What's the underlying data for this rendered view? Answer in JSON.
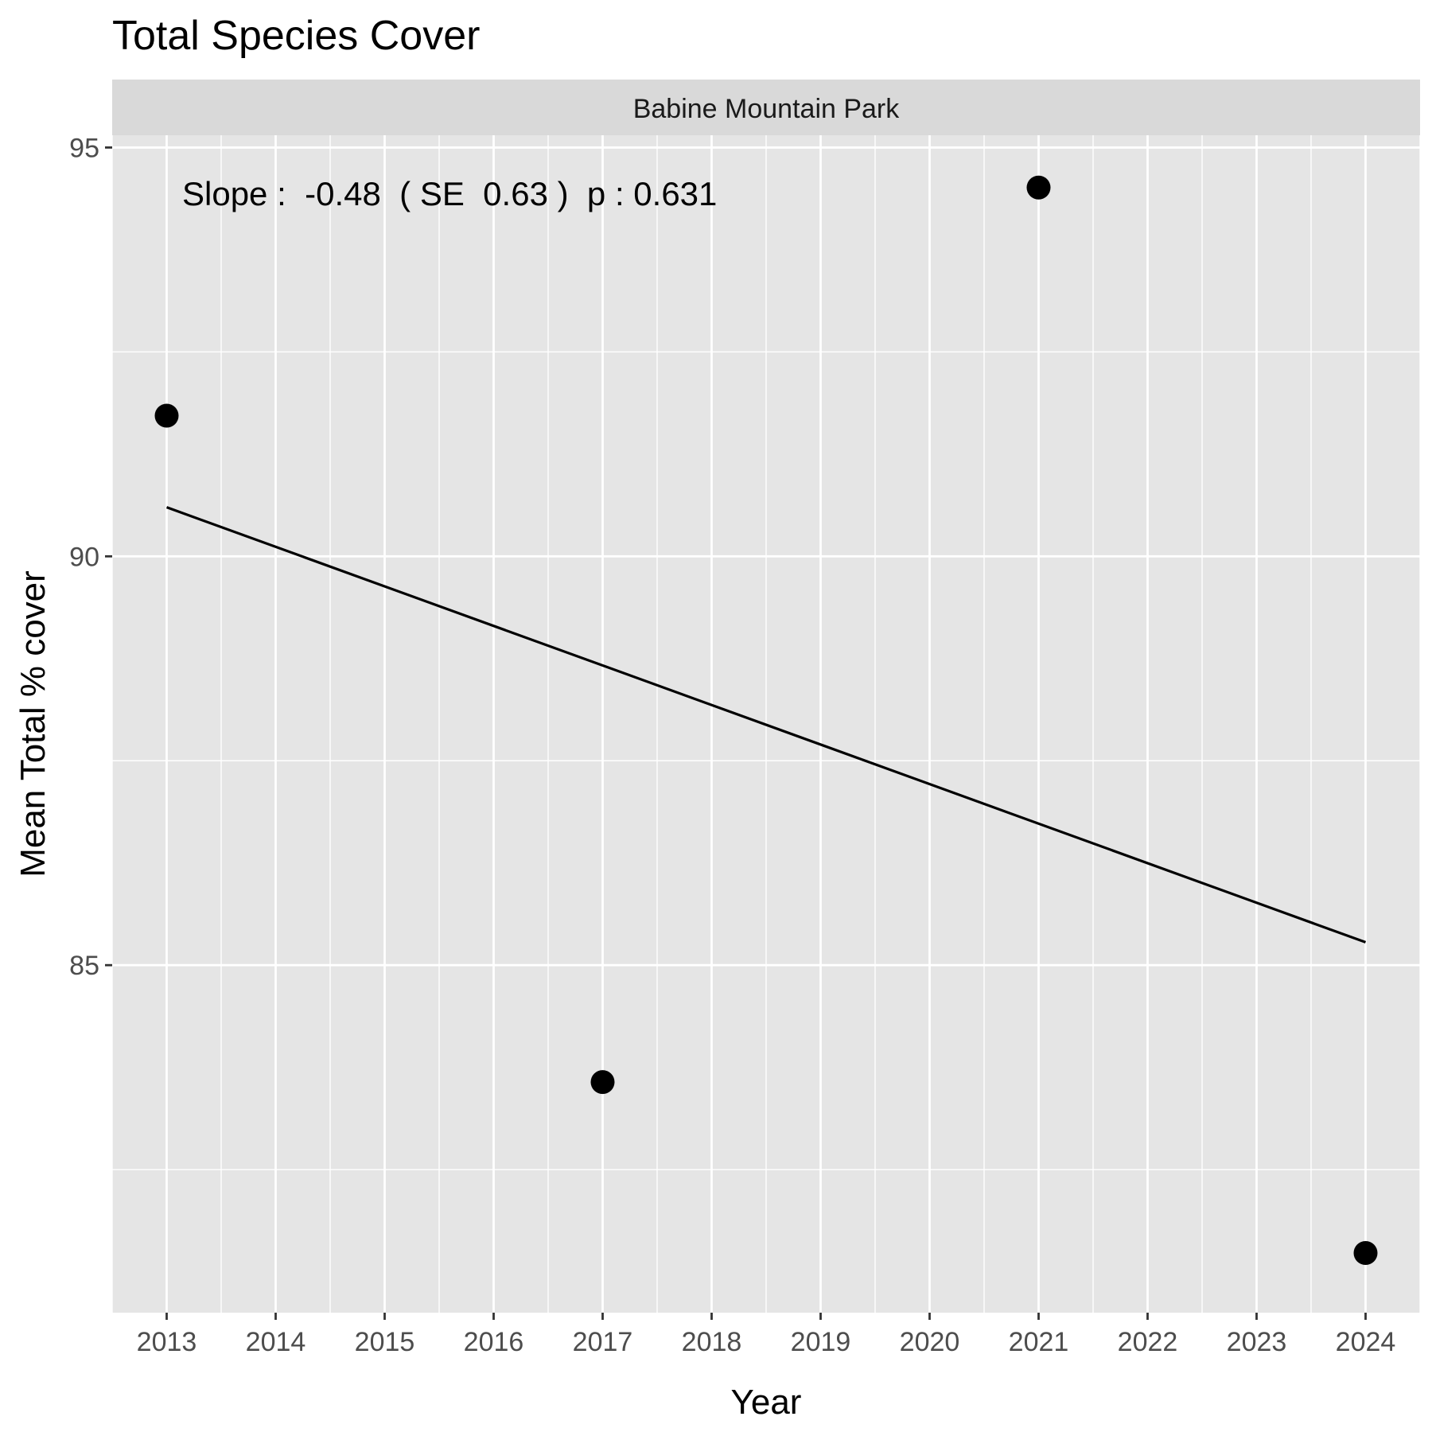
{
  "chart_data": {
    "type": "scatter",
    "title": "Total Species Cover",
    "facet": "Babine Mountain Park",
    "xlabel": "Year",
    "ylabel": "Mean Total % cover",
    "x_ticks": [
      2013,
      2014,
      2015,
      2016,
      2017,
      2018,
      2019,
      2020,
      2021,
      2022,
      2023,
      2024
    ],
    "y_ticks": [
      85,
      90,
      95
    ],
    "xlim": [
      2012.5,
      2024.5
    ],
    "ylim": [
      80.75,
      95.15
    ],
    "grid": true,
    "points": [
      {
        "x": 2013,
        "y": 91.72
      },
      {
        "x": 2017,
        "y": 83.57
      },
      {
        "x": 2021,
        "y": 94.51
      },
      {
        "x": 2024,
        "y": 81.48
      }
    ],
    "trend_line": {
      "x": [
        2013,
        2024
      ],
      "y": [
        90.6,
        85.28
      ]
    },
    "annotation": "Slope :  -0.48  ( SE  0.63 )  p : 0.631",
    "colors": {
      "panel": "#e5e5e5",
      "strip": "#d9d9d9",
      "grid": "#ffffff",
      "points": "#000000",
      "line": "#000000"
    }
  }
}
